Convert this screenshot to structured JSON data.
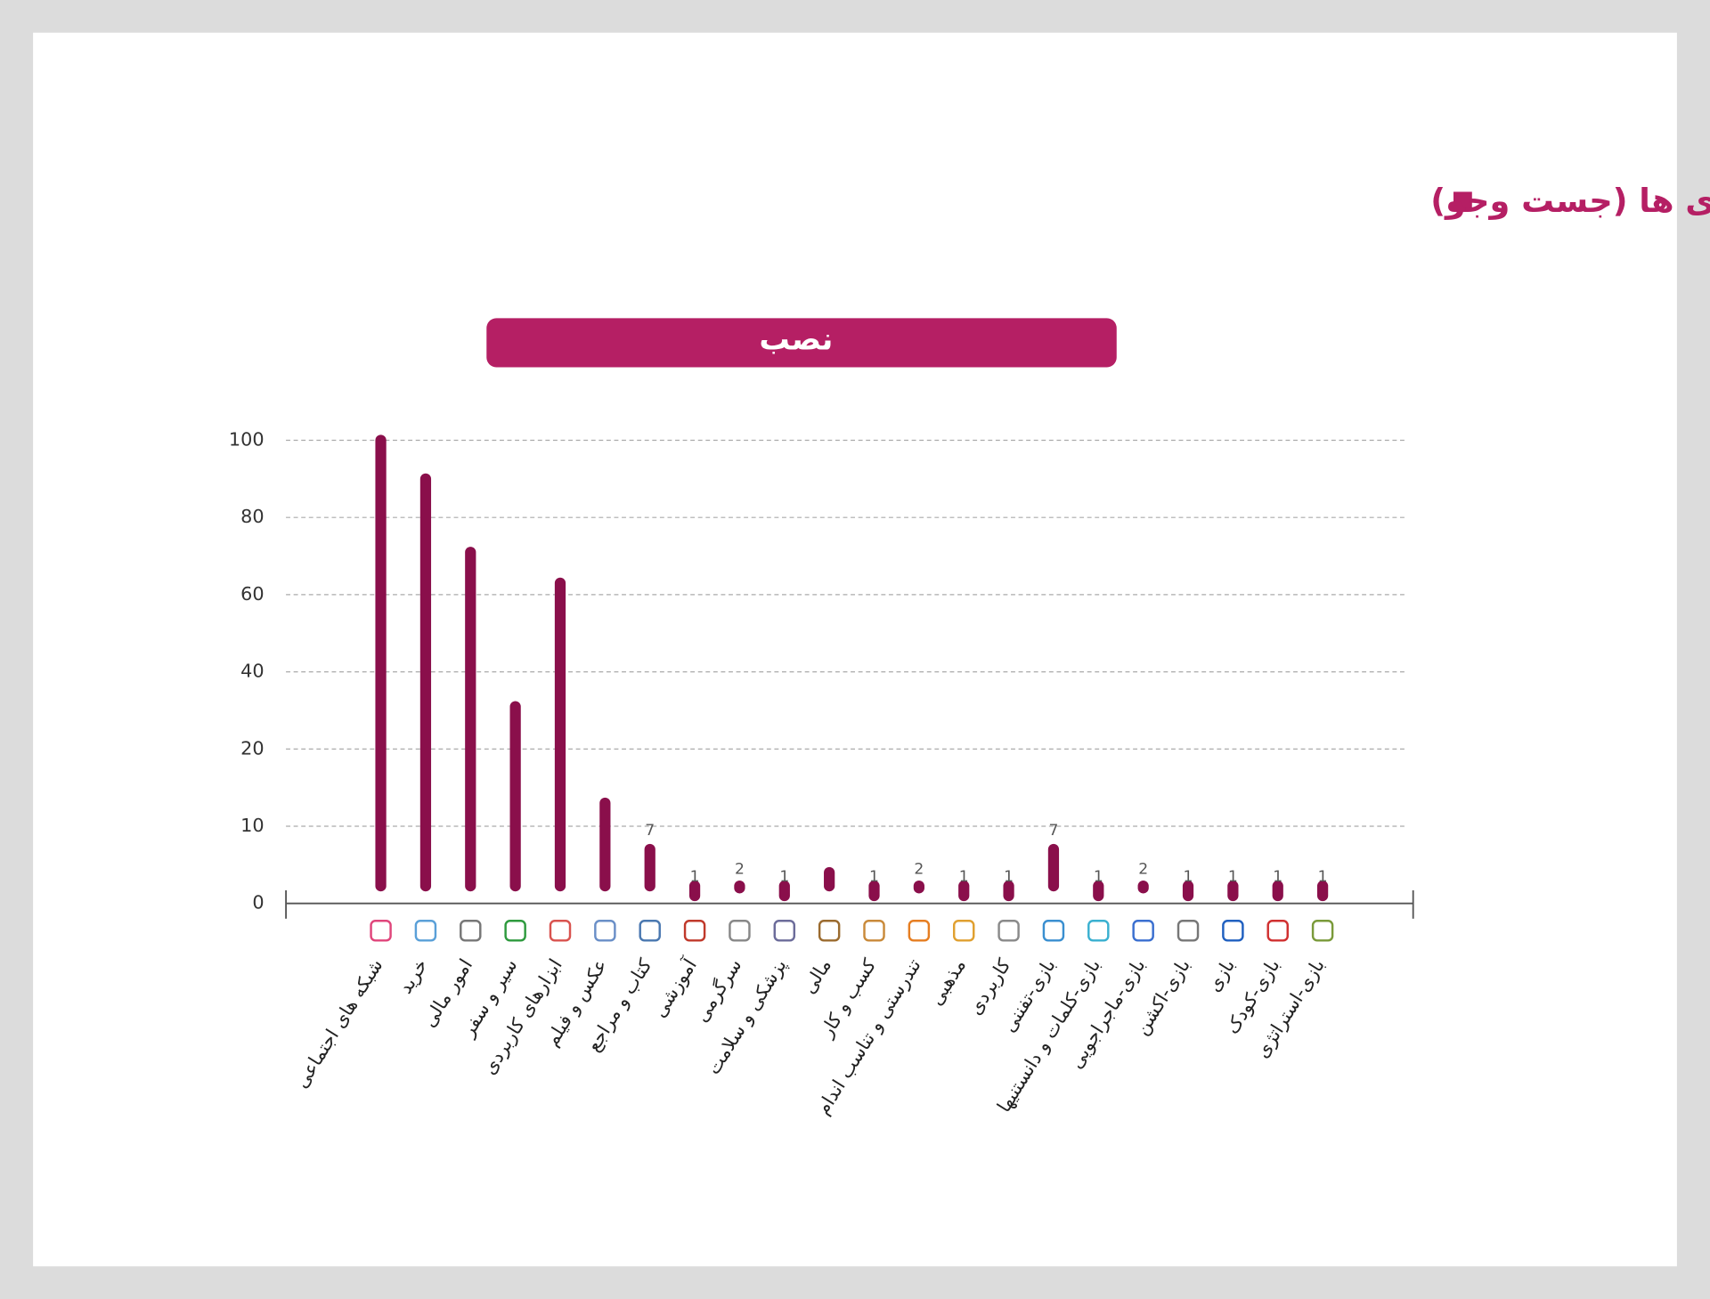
{
  "chart_data": {
    "type": "lollipop-bar",
    "title": "بررسی عملکرد دسته بندی ها (جست وجو)",
    "subtitle": "نصب",
    "categories": [
      "شبکه های اجتماعی",
      "خرید",
      "امور مالی",
      "سیر و سفر",
      "ابزارهای کاربردی",
      "عکس و فیلم",
      "کتاب و مراجع",
      "آموزشی",
      "سرگرمی",
      "پزشکی و سلامت",
      "مالی",
      "کسب و کار",
      "تندرستی و تناسب اندام",
      "مذهبی",
      "کاربردی",
      "بازی-تفننی",
      "بازی-کلمات و دانستنیها",
      "بازی-ماجراجویی",
      "بازی-اکشن",
      "بازی",
      "بازی-کودک",
      "بازی-استراتژی"
    ],
    "values": [
      100,
      90,
      71,
      31,
      63,
      13,
      7,
      1,
      2,
      1,
      4,
      1,
      2,
      1,
      1,
      7,
      1,
      2,
      1,
      1,
      1,
      1
    ],
    "value_labels": [
      null,
      null,
      null,
      null,
      null,
      null,
      "7",
      "1",
      "2",
      "1",
      null,
      "1",
      "2",
      "1",
      "1",
      "7",
      "1",
      "2",
      "1",
      "1",
      "1",
      "1"
    ],
    "color": "#8a0f4b",
    "ylim": [
      0,
      100
    ],
    "yticks": [
      0,
      10,
      20,
      40,
      60,
      80,
      100
    ],
    "grid": true
  }
}
